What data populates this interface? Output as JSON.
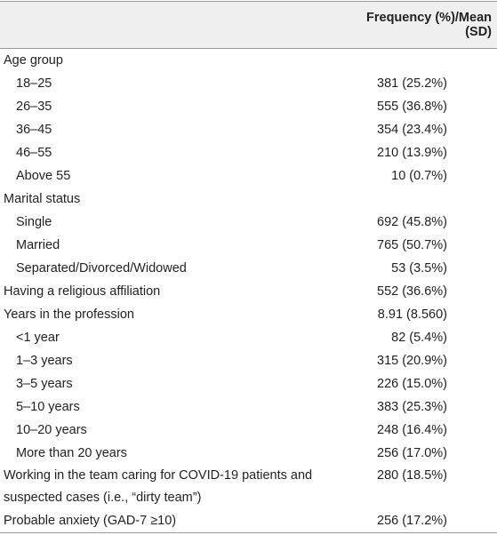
{
  "header": {
    "column": "Frequency (%)/Mean (SD)"
  },
  "rows": [
    {
      "label": "Age group",
      "children": [
        {
          "label": "18–25",
          "value": "381 (25.2%)"
        },
        {
          "label": "26–35",
          "value": "555 (36.8%)"
        },
        {
          "label": "36–45",
          "value": "354 (23.4%)"
        },
        {
          "label": "46–55",
          "value": "210 (13.9%)"
        },
        {
          "label": "Above 55",
          "value": "10 (0.7%)"
        }
      ]
    },
    {
      "label": "Marital status",
      "children": [
        {
          "label": "Single",
          "value": "692 (45.8%)"
        },
        {
          "label": "Married",
          "value": "765 (50.7%)"
        },
        {
          "label": "Separated/Divorced/Widowed",
          "value": "53 (3.5%)"
        }
      ]
    },
    {
      "label": "Having a religious affiliation",
      "value": "552 (36.6%)"
    },
    {
      "label": "Years in the profession",
      "value": "8.91 (8.560)",
      "children": [
        {
          "label": "<1 year",
          "value": "82 (5.4%)"
        },
        {
          "label": "1–3 years",
          "value": "315 (20.9%)"
        },
        {
          "label": "3–5 years",
          "value": "226 (15.0%)"
        },
        {
          "label": "5–10 years",
          "value": "383 (25.3%)"
        },
        {
          "label": "10–20 years",
          "value": "248 (16.4%)"
        },
        {
          "label": "More than 20 years",
          "value": "256 (17.0%)"
        }
      ]
    },
    {
      "label": "Working in the team caring for COVID-19 patients and suspected cases (i.e., “dirty team”)",
      "value": "280 (18.5%)"
    },
    {
      "label": "Probable anxiety (GAD-7 ≥10)",
      "value": "256 (17.2%)"
    }
  ]
}
